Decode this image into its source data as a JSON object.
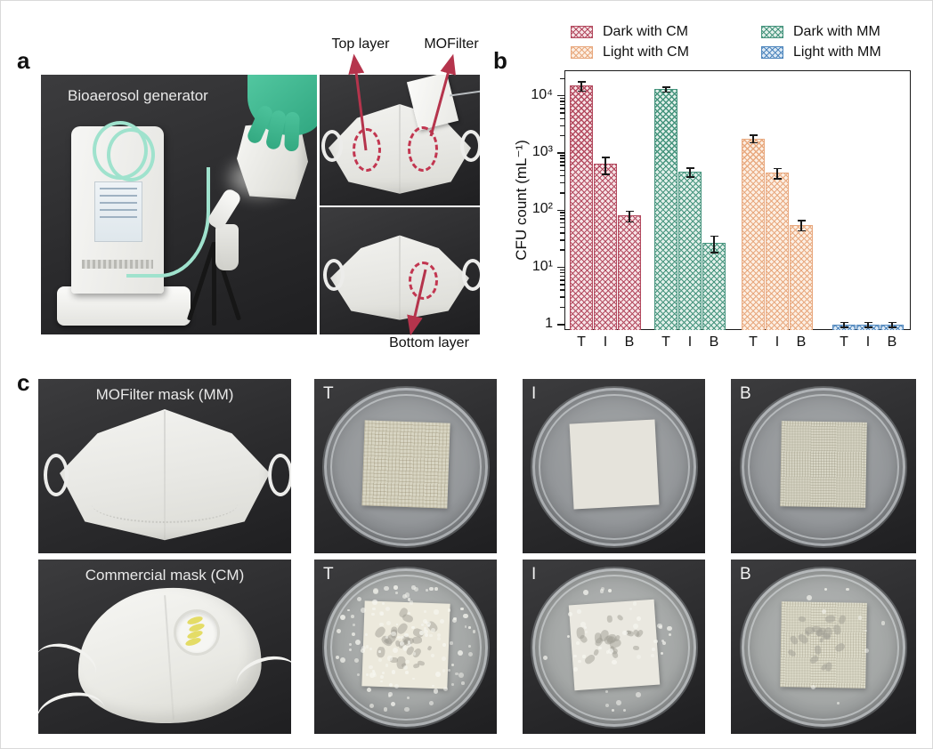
{
  "panels": {
    "a": {
      "label": "a",
      "photo_caption": "Bioaerosol generator",
      "labels": {
        "top_layer": "Top layer",
        "mofilter": "MOFilter",
        "bottom_layer": "Bottom layer"
      }
    },
    "b": {
      "label": "b"
    },
    "c": {
      "label": "c",
      "rows": [
        {
          "mask_caption": "MOFilter mask (MM)",
          "dish_labels": [
            "T",
            "I",
            "B"
          ]
        },
        {
          "mask_caption": "Commercial mask (CM)",
          "dish_labels": [
            "T",
            "I",
            "B"
          ]
        }
      ]
    }
  },
  "chart_data": {
    "type": "bar",
    "scale_y": "log",
    "title": "",
    "xlabel": "",
    "ylabel": "CFU count (mL⁻¹)",
    "ylim": [
      0.8,
      28000
    ],
    "ytick_values": [
      1,
      10,
      100,
      1000,
      10000
    ],
    "ytick_labels": [
      "1",
      "10¹",
      "10²",
      "10³",
      "10⁴"
    ],
    "categories": [
      "T",
      "I",
      "B"
    ],
    "series": [
      {
        "name": "Dark with CM",
        "color": "#b34a5f",
        "fill": "#f6e3e6",
        "values": [
          15000,
          640,
          80
        ],
        "errors": [
          3000,
          220,
          18
        ]
      },
      {
        "name": "Dark with MM",
        "color": "#44937c",
        "fill": "#e2f0ea",
        "values": [
          13000,
          470,
          27
        ],
        "errors": [
          1500,
          90,
          9
        ]
      },
      {
        "name": "Light with CM",
        "color": "#e8a87e",
        "fill": "#fcefe3",
        "values": [
          1800,
          450,
          55
        ],
        "errors": [
          300,
          100,
          12
        ]
      },
      {
        "name": "Light with MM",
        "color": "#4e86bd",
        "fill": "#dce9f5",
        "values": [
          1,
          1,
          1
        ],
        "errors": [
          0.12,
          0.12,
          0.12
        ]
      }
    ],
    "legend": [
      "Dark with CM",
      "Dark with MM",
      "Light with CM",
      "Light with MM"
    ],
    "legend_position": "top",
    "grid": false,
    "arrow_color": "#b5344c"
  }
}
